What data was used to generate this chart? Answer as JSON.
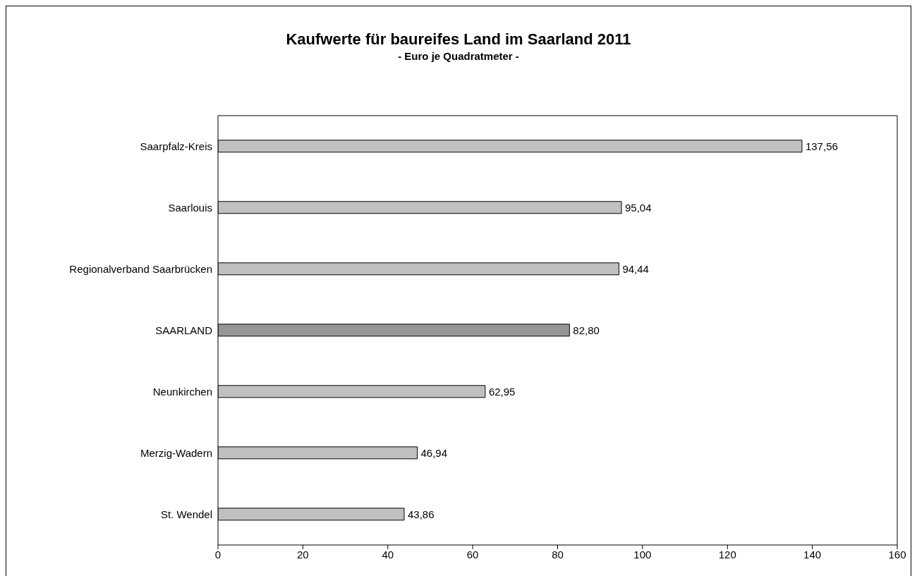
{
  "chart_data": {
    "type": "bar",
    "orientation": "horizontal",
    "title": "Kaufwerte für baureifes Land im Saarland 2011",
    "subtitle": "- Euro je Quadratmeter -",
    "categories": [
      "Saarpfalz-Kreis",
      "Saarlouis",
      "Regionalverband Saarbrücken",
      "SAARLAND",
      "Neunkirchen",
      "Merzig-Wadern",
      "St. Wendel"
    ],
    "values": [
      137.56,
      95.04,
      94.44,
      82.8,
      62.95,
      46.94,
      43.86
    ],
    "value_labels": [
      "137,56",
      "95,04",
      "94,44",
      "82,80",
      "62,95",
      "46,94",
      "43,86"
    ],
    "colors": [
      "#c0c0c0",
      "#c0c0c0",
      "#c0c0c0",
      "#969696",
      "#c0c0c0",
      "#c0c0c0",
      "#c0c0c0"
    ],
    "xlim": [
      0,
      160
    ],
    "xticks": [
      0,
      20,
      40,
      60,
      80,
      100,
      120,
      140,
      160
    ],
    "grid": false,
    "legend": false
  }
}
